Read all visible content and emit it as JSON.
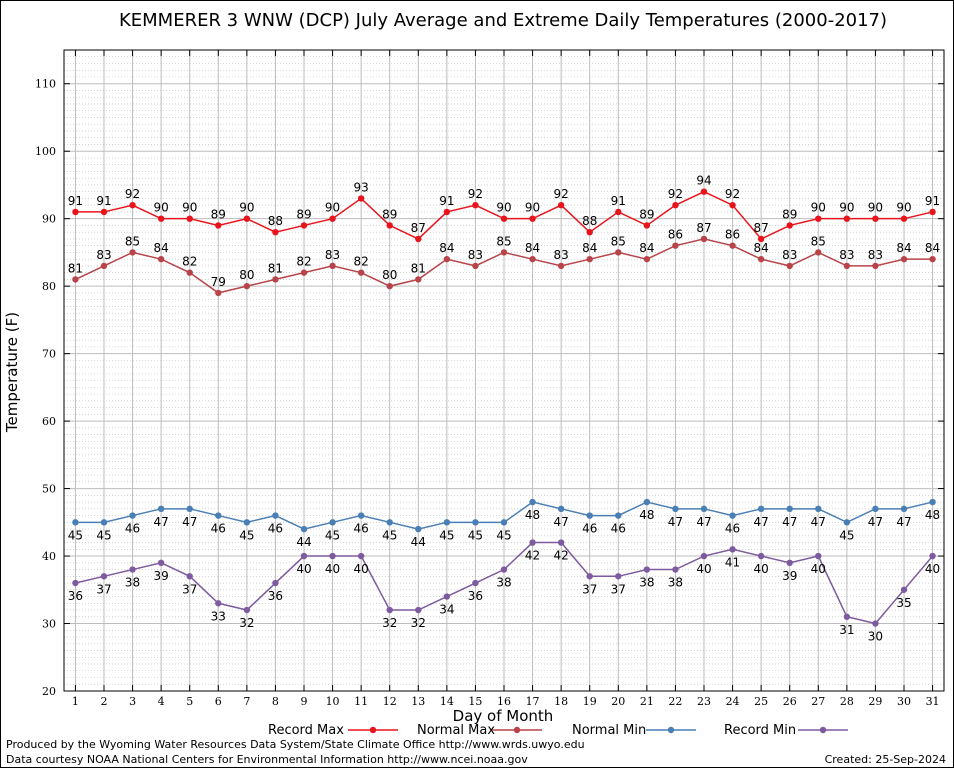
{
  "chart_data": {
    "type": "line",
    "title": "KEMMERER 3 WNW (DCP) July Average and Extreme Daily Temperatures (2000-2017)",
    "xlabel": "Day of Month",
    "ylabel": "Temperature (F)",
    "ylim": [
      20,
      115
    ],
    "yticks": [
      20,
      30,
      40,
      50,
      60,
      70,
      80,
      90,
      100,
      110
    ],
    "x": [
      1,
      2,
      3,
      4,
      5,
      6,
      7,
      8,
      9,
      10,
      11,
      12,
      13,
      14,
      15,
      16,
      17,
      18,
      19,
      20,
      21,
      22,
      23,
      24,
      25,
      26,
      27,
      28,
      29,
      30,
      31
    ],
    "grid": true,
    "legend_position": "bottom",
    "series": [
      {
        "name": "Record Max",
        "color": "#e8141c",
        "label_pos": "above",
        "values": [
          91,
          91,
          92,
          90,
          90,
          89,
          90,
          88,
          89,
          90,
          93,
          89,
          87,
          91,
          92,
          90,
          90,
          92,
          88,
          91,
          89,
          92,
          94,
          92,
          87,
          89,
          90,
          90,
          90,
          90,
          91
        ]
      },
      {
        "name": "Normal Max",
        "color": "#b8444a",
        "label_pos": "above",
        "values": [
          81,
          83,
          85,
          84,
          82,
          79,
          80,
          81,
          82,
          83,
          82,
          80,
          81,
          84,
          83,
          85,
          84,
          83,
          84,
          85,
          84,
          86,
          87,
          86,
          84,
          83,
          85,
          83,
          83,
          84,
          84
        ]
      },
      {
        "name": "Normal Min",
        "color": "#4a7fb5",
        "label_pos": "below",
        "values": [
          45,
          45,
          46,
          47,
          47,
          46,
          45,
          46,
          44,
          45,
          46,
          45,
          44,
          45,
          45,
          45,
          48,
          47,
          46,
          46,
          48,
          47,
          47,
          46,
          47,
          47,
          47,
          45,
          47,
          47,
          48
        ]
      },
      {
        "name": "Record Min",
        "color": "#7e5a9e",
        "label_pos": "below",
        "values": [
          36,
          37,
          38,
          39,
          37,
          33,
          32,
          36,
          40,
          40,
          40,
          32,
          32,
          34,
          36,
          38,
          42,
          42,
          37,
          37,
          38,
          38,
          40,
          41,
          40,
          39,
          40,
          31,
          30,
          35,
          40
        ]
      }
    ]
  },
  "footer": {
    "line1": "Produced by the Wyoming Water Resources Data System/State Climate Office http://www.wrds.uwyo.edu",
    "line2": "Data courtesy NOAA National Centers for Environmental Information http://www.ncei.noaa.gov",
    "created": "Created:  25-Sep-2024"
  }
}
